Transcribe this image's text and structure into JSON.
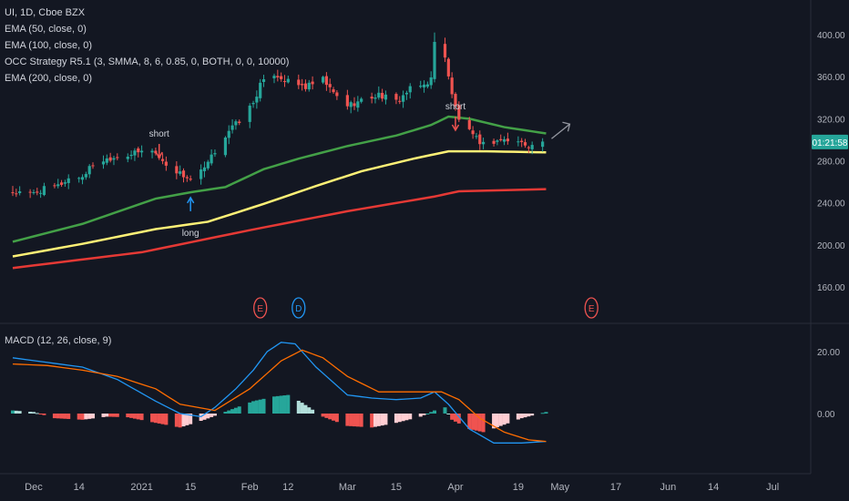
{
  "legend": {
    "symbol": "UI, 1D, Cboe BZX",
    "ema50": "EMA (50, close, 0)",
    "ema100": "EMA (100, close, 0)",
    "strategy": "OCC Strategy R5.1 (3, SMMA, 8, 6, 0.85, 0, BOTH, 0, 0, 10000)",
    "ema200": "EMA (200, close, 0)",
    "macd": "MACD (12, 26, close, 9)"
  },
  "price_tag": "01:21:58",
  "colors": {
    "background": "#131722",
    "up": "#26a69a",
    "down": "#ef5350",
    "ema50": "#43a047",
    "ema100": "#fff176",
    "ema200": "#e53935",
    "macd_line": "#2196f3",
    "signal_line": "#ff6d00",
    "hist_up_strong": "#26a69a",
    "hist_up_weak": "#b2dfdb",
    "hist_down_strong": "#ef5350",
    "hist_down_weak": "#ffcdd2",
    "earnings": "#ef5350",
    "dividend": "#2196f3"
  },
  "signals": [
    {
      "label": "short",
      "date": "2021-01-06",
      "price": 296,
      "dir": "down"
    },
    {
      "label": "long",
      "date": "2021-01-15",
      "price": 232,
      "dir": "up"
    },
    {
      "label": "short",
      "date": "2021-04-01",
      "price": 322,
      "dir": "down"
    }
  ],
  "events": [
    {
      "label": "E",
      "date": "2021-02-04",
      "kind": "earnings"
    },
    {
      "label": "D",
      "date": "2021-02-15",
      "kind": "dividend"
    },
    {
      "label": "E",
      "date": "2021-05-10",
      "kind": "earnings"
    }
  ],
  "chart_data": [
    {
      "type": "candlestick",
      "title": "UI, 1D, Cboe BZX",
      "x_range": [
        "2020-11-25",
        "2021-07-08"
      ],
      "ylim": [
        142,
        404
      ],
      "y_ticks": [
        160,
        200,
        240,
        280,
        320,
        360,
        400
      ],
      "y_tick_labels": [
        "160.00",
        "200.00",
        "240.00",
        "280.00",
        "320.00",
        "360.00",
        "400.00"
      ],
      "x_ticks": [
        {
          "date": "2020-12-01",
          "label": "Dec"
        },
        {
          "date": "2020-12-14",
          "label": "14"
        },
        {
          "date": "2021-01-01",
          "label": "2021"
        },
        {
          "date": "2021-01-15",
          "label": "15"
        },
        {
          "date": "2021-02-01",
          "label": "Feb"
        },
        {
          "date": "2021-02-12",
          "label": "12"
        },
        {
          "date": "2021-03-01",
          "label": "Mar"
        },
        {
          "date": "2021-03-15",
          "label": "15"
        },
        {
          "date": "2021-04-01",
          "label": "Apr"
        },
        {
          "date": "2021-04-19",
          "label": "19"
        },
        {
          "date": "2021-05-01",
          "label": "May"
        },
        {
          "date": "2021-05-17",
          "label": "17"
        },
        {
          "date": "2021-06-01",
          "label": "Jun"
        },
        {
          "date": "2021-06-14",
          "label": "14"
        },
        {
          "date": "2021-07-01",
          "label": "Jul"
        }
      ],
      "close_anchors": [
        [
          "2020-11-25",
          250
        ],
        [
          "2020-11-30",
          248
        ],
        [
          "2020-12-04",
          253
        ],
        [
          "2020-12-08",
          256
        ],
        [
          "2020-12-11",
          263
        ],
        [
          "2020-12-15",
          265
        ],
        [
          "2020-12-18",
          277
        ],
        [
          "2020-12-23",
          283
        ],
        [
          "2020-12-30",
          287
        ],
        [
          "2021-01-04",
          291
        ],
        [
          "2021-01-07",
          279
        ],
        [
          "2021-01-12",
          268
        ],
        [
          "2021-01-15",
          262
        ],
        [
          "2021-01-19",
          272
        ],
        [
          "2021-01-22",
          289
        ],
        [
          "2021-01-26",
          309
        ],
        [
          "2021-01-29",
          318
        ],
        [
          "2021-02-02",
          335
        ],
        [
          "2021-02-04",
          352
        ],
        [
          "2021-02-08",
          363
        ],
        [
          "2021-02-12",
          355
        ],
        [
          "2021-02-17",
          350
        ],
        [
          "2021-02-22",
          357
        ],
        [
          "2021-02-25",
          344
        ],
        [
          "2021-03-01",
          333
        ],
        [
          "2021-03-05",
          337
        ],
        [
          "2021-03-10",
          343
        ],
        [
          "2021-03-15",
          336
        ],
        [
          "2021-03-19",
          348
        ],
        [
          "2021-03-23",
          352
        ],
        [
          "2021-03-25",
          358
        ],
        [
          "2021-03-26",
          392
        ],
        [
          "2021-03-29",
          380
        ],
        [
          "2021-03-31",
          342
        ],
        [
          "2021-04-02",
          320
        ],
        [
          "2021-04-06",
          303
        ],
        [
          "2021-04-09",
          296
        ],
        [
          "2021-04-14",
          300
        ],
        [
          "2021-04-19",
          298
        ],
        [
          "2021-04-23",
          294
        ],
        [
          "2021-04-26",
          299
        ]
      ],
      "last_price": 297,
      "indicators": [
        {
          "name": "EMA (50, close, 0)",
          "color_key": "ema50",
          "points": [
            [
              "2020-11-25",
              203
            ],
            [
              "2020-12-15",
              220
            ],
            [
              "2021-01-05",
              244
            ],
            [
              "2021-01-15",
              250
            ],
            [
              "2021-01-25",
              255
            ],
            [
              "2021-02-05",
              272
            ],
            [
              "2021-02-15",
              282
            ],
            [
              "2021-03-01",
              294
            ],
            [
              "2021-03-15",
              304
            ],
            [
              "2021-03-25",
              314
            ],
            [
              "2021-03-30",
              322
            ],
            [
              "2021-04-05",
              320
            ],
            [
              "2021-04-15",
              312
            ],
            [
              "2021-04-27",
              306
            ]
          ]
        },
        {
          "name": "EMA (100, close, 0)",
          "color_key": "ema100",
          "points": [
            [
              "2020-11-25",
              189
            ],
            [
              "2020-12-15",
              201
            ],
            [
              "2021-01-05",
              215
            ],
            [
              "2021-01-20",
              222
            ],
            [
              "2021-02-05",
              239
            ],
            [
              "2021-02-20",
              256
            ],
            [
              "2021-03-05",
              270
            ],
            [
              "2021-03-20",
              282
            ],
            [
              "2021-03-30",
              289
            ],
            [
              "2021-04-10",
              289
            ],
            [
              "2021-04-27",
              288
            ]
          ]
        },
        {
          "name": "EMA (200, close, 0)",
          "color_key": "ema200",
          "points": [
            [
              "2020-11-25",
              178
            ],
            [
              "2021-01-01",
              193
            ],
            [
              "2021-02-01",
              214
            ],
            [
              "2021-03-01",
              232
            ],
            [
              "2021-03-26",
              246
            ],
            [
              "2021-04-02",
              251
            ],
            [
              "2021-04-27",
              253
            ]
          ]
        }
      ]
    },
    {
      "type": "line",
      "title": "MACD (12, 26, close, 9)",
      "ylim": [
        -11,
        26
      ],
      "y_ticks": [
        0,
        20
      ],
      "y_tick_labels": [
        "0.00",
        "20.00"
      ],
      "series": [
        {
          "name": "MACD",
          "color_key": "macd_line",
          "points": [
            [
              "2020-11-25",
              18
            ],
            [
              "2020-12-05",
              16.5
            ],
            [
              "2020-12-15",
              15
            ],
            [
              "2020-12-25",
              11
            ],
            [
              "2021-01-05",
              4
            ],
            [
              "2021-01-12",
              0
            ],
            [
              "2021-01-18",
              -1
            ],
            [
              "2021-01-22",
              2
            ],
            [
              "2021-01-28",
              8
            ],
            [
              "2021-02-02",
              14
            ],
            [
              "2021-02-06",
              20
            ],
            [
              "2021-02-10",
              23
            ],
            [
              "2021-02-14",
              22.5
            ],
            [
              "2021-02-20",
              15
            ],
            [
              "2021-03-01",
              6
            ],
            [
              "2021-03-08",
              5
            ],
            [
              "2021-03-15",
              4.5
            ],
            [
              "2021-03-22",
              5
            ],
            [
              "2021-03-26",
              7
            ],
            [
              "2021-03-30",
              3
            ],
            [
              "2021-04-05",
              -5
            ],
            [
              "2021-04-12",
              -9.5
            ],
            [
              "2021-04-20",
              -9.5
            ],
            [
              "2021-04-27",
              -9
            ]
          ]
        },
        {
          "name": "Signal",
          "color_key": "signal_line",
          "points": [
            [
              "2020-11-25",
              16
            ],
            [
              "2020-12-05",
              15.5
            ],
            [
              "2020-12-15",
              14
            ],
            [
              "2020-12-25",
              12
            ],
            [
              "2021-01-05",
              8
            ],
            [
              "2021-01-12",
              3
            ],
            [
              "2021-01-22",
              1
            ],
            [
              "2021-02-01",
              8
            ],
            [
              "2021-02-10",
              17
            ],
            [
              "2021-02-16",
              20.5
            ],
            [
              "2021-02-22",
              18
            ],
            [
              "2021-03-01",
              12
            ],
            [
              "2021-03-10",
              7
            ],
            [
              "2021-03-20",
              7
            ],
            [
              "2021-03-28",
              7
            ],
            [
              "2021-04-02",
              4.5
            ],
            [
              "2021-04-08",
              -1.5
            ],
            [
              "2021-04-15",
              -6
            ],
            [
              "2021-04-22",
              -8.5
            ],
            [
              "2021-04-27",
              -9
            ]
          ]
        }
      ],
      "histogram_anchors": [
        [
          "2020-11-25",
          1
        ],
        [
          "2020-12-01",
          0.5
        ],
        [
          "2020-12-07",
          -1.5
        ],
        [
          "2020-12-15",
          -2
        ],
        [
          "2020-12-22",
          -1
        ],
        [
          "2020-12-28",
          -1.2
        ],
        [
          "2021-01-05",
          -3
        ],
        [
          "2021-01-12",
          -4.5
        ],
        [
          "2021-01-19",
          -2
        ],
        [
          "2021-01-26",
          1
        ],
        [
          "2021-02-02",
          4
        ],
        [
          "2021-02-08",
          5.5
        ],
        [
          "2021-02-12",
          6
        ],
        [
          "2021-02-16",
          3.5
        ],
        [
          "2021-02-22",
          -1
        ],
        [
          "2021-03-01",
          -4
        ],
        [
          "2021-03-08",
          -4.5
        ],
        [
          "2021-03-15",
          -3
        ],
        [
          "2021-03-22",
          -1
        ],
        [
          "2021-03-26",
          1
        ],
        [
          "2021-03-29",
          2
        ],
        [
          "2021-03-31",
          -2
        ],
        [
          "2021-04-05",
          -5
        ],
        [
          "2021-04-09",
          -6
        ],
        [
          "2021-04-14",
          -4
        ],
        [
          "2021-04-20",
          -1.5
        ],
        [
          "2021-04-27",
          0.5
        ]
      ]
    }
  ]
}
